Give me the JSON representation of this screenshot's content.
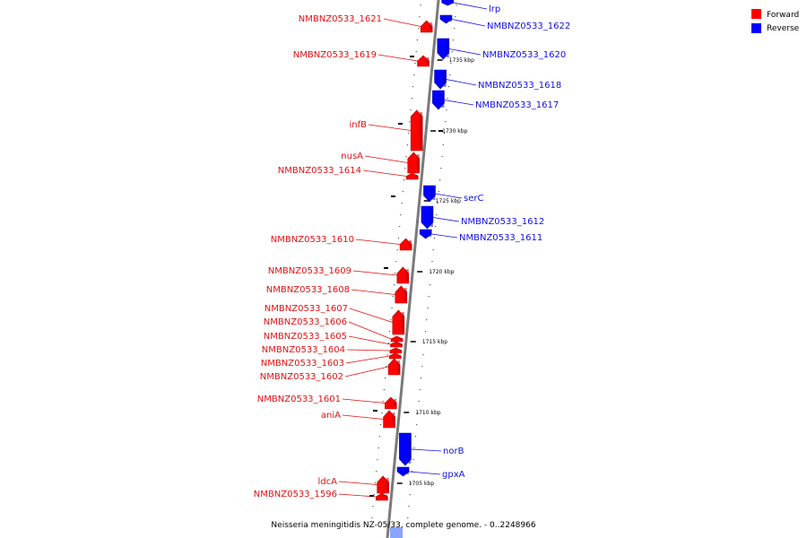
{
  "caption": "Neisseria meningitidis NZ-05/33, complete genome. - 0..2248966",
  "legend": {
    "forward": {
      "label": "Forward",
      "color": "#ff0000"
    },
    "reverse": {
      "label": "Reverse",
      "color": "#0000ff"
    }
  },
  "ticks": [
    "1735 kbp",
    "1730 kbp",
    "1725 kbp",
    "1720 kbp",
    "1715 kbp",
    "1710 kbp",
    "1705 kbp"
  ],
  "genes_forward": [
    "NMBNZ0533_1621",
    "NMBNZ0533_1619",
    "infB",
    "nusA",
    "NMBNZ0533_1614",
    "NMBNZ0533_1610",
    "NMBNZ0533_1609",
    "NMBNZ0533_1608",
    "NMBNZ0533_1607",
    "NMBNZ0533_1606",
    "NMBNZ0533_1605",
    "NMBNZ0533_1604",
    "NMBNZ0533_1603",
    "NMBNZ0533_1602",
    "NMBNZ0533_1601",
    "aniA",
    "ldcA",
    "NMBNZ0533_1596"
  ],
  "genes_reverse": [
    "lrp",
    "NMBNZ0533_1622",
    "NMBNZ0533_1620",
    "NMBNZ0533_1618",
    "NMBNZ0533_1617",
    "serC",
    "NMBNZ0533_1612",
    "NMBNZ0533_1611",
    "norB",
    "gpxA"
  ]
}
